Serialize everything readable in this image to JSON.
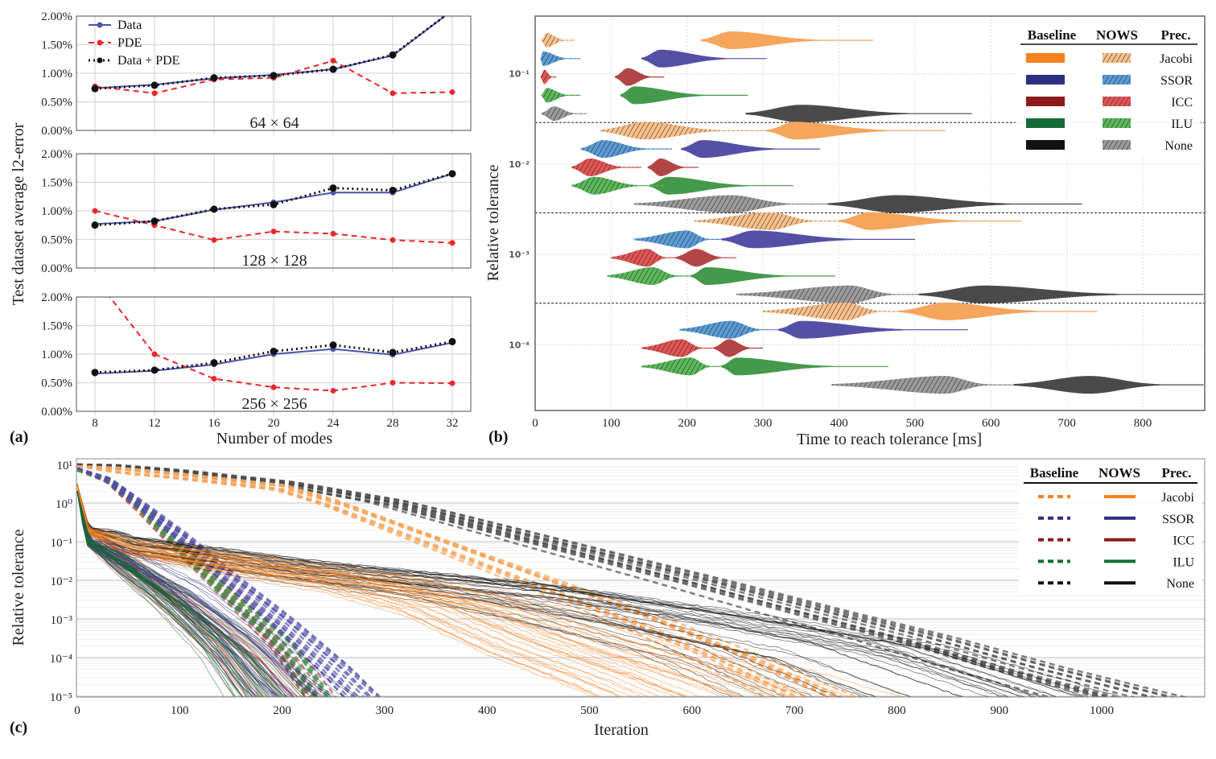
{
  "panel_labels": {
    "a": "(a)",
    "b": "(b)",
    "c": "(c)"
  },
  "colors": {
    "data": "#4a55a8",
    "pde": "#e8282b",
    "data_pde": "#111111",
    "baseline": {
      "Jacobi": "#f6a55c",
      "SSOR": "#5450a6",
      "ICC": "#b24646",
      "ILU": "#45994c",
      "None": "#4a4a4a"
    },
    "baseline_legend": {
      "Jacobi": "#f58220",
      "SSOR": "#2e2e80",
      "ICC": "#8c1a1a",
      "ILU": "#166b36",
      "None": "#111111"
    },
    "nows": {
      "Jacobi": "#f8c08a",
      "SSOR": "#5b9bd5",
      "ICC": "#e25555",
      "ILU": "#5ab85a",
      "None": "#9a9a9a"
    }
  },
  "chart_data": [
    {
      "panel": "a",
      "type": "line",
      "xlabel": "Number of modes",
      "ylabel": "Test dataset average l2-error",
      "x": [
        8,
        12,
        16,
        20,
        24,
        28,
        32
      ],
      "x_tick_labels": [
        "8",
        "12",
        "16",
        "20",
        "24",
        "28",
        "32"
      ],
      "ylim": [
        0,
        2
      ],
      "y_tick_labels": [
        "0.00%",
        "0.50%",
        "1.00%",
        "1.50%",
        "2.00%"
      ],
      "y_unit": "%",
      "grid": true,
      "legend": {
        "placement": "top-left",
        "entries": [
          "Data",
          "PDE",
          "Data + PDE"
        ]
      },
      "subplots": [
        {
          "label": "64 × 64",
          "series": [
            {
              "name": "Data",
              "values": [
                0.74,
                0.8,
                0.91,
                0.97,
                1.07,
                1.31,
                2.1
              ]
            },
            {
              "name": "PDE",
              "values": [
                0.77,
                0.65,
                0.89,
                0.92,
                1.22,
                0.65,
                0.67
              ]
            },
            {
              "name": "Data + PDE",
              "values": [
                0.73,
                0.79,
                0.92,
                0.96,
                1.07,
                1.32,
                2.1
              ]
            }
          ]
        },
        {
          "label": "128 × 128",
          "series": [
            {
              "name": "Data",
              "values": [
                0.77,
                0.82,
                1.02,
                1.15,
                1.32,
                1.32,
                1.65
              ]
            },
            {
              "name": "PDE",
              "values": [
                1.0,
                0.75,
                0.49,
                0.64,
                0.6,
                0.49,
                0.44
              ]
            },
            {
              "name": "Data + PDE",
              "values": [
                0.75,
                0.82,
                1.03,
                1.11,
                1.4,
                1.36,
                1.65
              ]
            }
          ]
        },
        {
          "label": "256 × 256",
          "series": [
            {
              "name": "Data",
              "values": [
                0.66,
                0.71,
                0.82,
                1.0,
                1.09,
                0.99,
                1.2
              ]
            },
            {
              "name": "PDE",
              "values": [
                2.33,
                1.0,
                0.57,
                0.42,
                0.36,
                0.5,
                0.49
              ]
            },
            {
              "name": "Data + PDE",
              "values": [
                0.68,
                0.72,
                0.85,
                1.05,
                1.16,
                1.03,
                1.22
              ]
            }
          ]
        }
      ]
    },
    {
      "panel": "b",
      "type": "violin",
      "xlabel": "Time to reach tolerance [ms]",
      "ylabel": "Relative tolerance",
      "xlim": [
        0,
        880
      ],
      "x_ticks": [
        0,
        100,
        200,
        300,
        400,
        500,
        600,
        700,
        800
      ],
      "tolerance_labels": [
        "10⁻¹",
        "10⁻²",
        "10⁻³",
        "10⁻⁴"
      ],
      "grid": true,
      "legend": {
        "placement": "top-right",
        "headers": [
          "Baseline",
          "NOWS",
          "Prec."
        ],
        "entries": [
          "Jacobi",
          "SSOR",
          "ICC",
          "ILU",
          "None"
        ]
      },
      "groups": [
        {
          "tolerance": "10⁻¹",
          "rows": [
            {
              "prec": "Jacobi",
              "nows": {
                "peak": 15,
                "min": 8,
                "max": 52
              },
              "baseline": {
                "peak": 258,
                "min": 218,
                "max": 445
              }
            },
            {
              "prec": "SSOR",
              "nows": {
                "peak": 10,
                "min": 7,
                "max": 60
              },
              "baseline": {
                "peak": 165,
                "min": 140,
                "max": 305
              }
            },
            {
              "prec": "ICC",
              "nows": {
                "peak": 12,
                "min": 7,
                "max": 28
              },
              "baseline": {
                "peak": 122,
                "min": 105,
                "max": 170
              }
            },
            {
              "prec": "ILU",
              "nows": {
                "peak": 15,
                "min": 8,
                "max": 60
              },
              "baseline": {
                "peak": 130,
                "min": 112,
                "max": 280
              }
            },
            {
              "prec": "None",
              "nows": {
                "peak": 25,
                "min": 8,
                "max": 68
              },
              "baseline": {
                "peak": 350,
                "min": 277,
                "max": 575
              }
            }
          ]
        },
        {
          "tolerance": "10⁻²",
          "rows": [
            {
              "prec": "Jacobi",
              "nows": {
                "peak": 145,
                "min": 85,
                "max": 305
              },
              "baseline": {
                "peak": 342,
                "min": 305,
                "max": 540
              }
            },
            {
              "prec": "SSOR",
              "nows": {
                "peak": 90,
                "min": 60,
                "max": 180
              },
              "baseline": {
                "peak": 220,
                "min": 192,
                "max": 375
              }
            },
            {
              "prec": "ICC",
              "nows": {
                "peak": 72,
                "min": 48,
                "max": 140
              },
              "baseline": {
                "peak": 165,
                "min": 148,
                "max": 215
              }
            },
            {
              "prec": "ILU",
              "nows": {
                "peak": 78,
                "min": 48,
                "max": 170
              },
              "baseline": {
                "peak": 175,
                "min": 150,
                "max": 340
              }
            },
            {
              "prec": "None",
              "nows": {
                "peak": 258,
                "min": 130,
                "max": 385
              },
              "baseline": {
                "peak": 475,
                "min": 385,
                "max": 720
              }
            }
          ]
        },
        {
          "tolerance": "10⁻³",
          "rows": [
            {
              "prec": "Jacobi",
              "nows": {
                "peak": 310,
                "min": 210,
                "max": 400
              },
              "baseline": {
                "peak": 440,
                "min": 400,
                "max": 640
              }
            },
            {
              "prec": "SSOR",
              "nows": {
                "peak": 200,
                "min": 130,
                "max": 245
              },
              "baseline": {
                "peak": 287,
                "min": 245,
                "max": 500
              }
            },
            {
              "prec": "ICC",
              "nows": {
                "peak": 148,
                "min": 100,
                "max": 185
              },
              "baseline": {
                "peak": 212,
                "min": 185,
                "max": 265
              }
            },
            {
              "prec": "ILU",
              "nows": {
                "peak": 155,
                "min": 95,
                "max": 205
              },
              "baseline": {
                "peak": 225,
                "min": 205,
                "max": 395
              }
            },
            {
              "prec": "None",
              "nows": {
                "peak": 415,
                "min": 265,
                "max": 505
              },
              "baseline": {
                "peak": 590,
                "min": 505,
                "max": 880
              }
            }
          ]
        },
        {
          "tolerance": "10⁻⁴",
          "rows": [
            {
              "prec": "Jacobi",
              "nows": {
                "peak": 410,
                "min": 300,
                "max": 480
              },
              "baseline": {
                "peak": 540,
                "min": 480,
                "max": 740
              }
            },
            {
              "prec": "SSOR",
              "nows": {
                "peak": 258,
                "min": 190,
                "max": 320
              },
              "baseline": {
                "peak": 350,
                "min": 320,
                "max": 570
              }
            },
            {
              "prec": "ICC",
              "nows": {
                "peak": 193,
                "min": 140,
                "max": 235
              },
              "baseline": {
                "peak": 255,
                "min": 235,
                "max": 300
              }
            },
            {
              "prec": "ILU",
              "nows": {
                "peak": 205,
                "min": 140,
                "max": 245
              },
              "baseline": {
                "peak": 265,
                "min": 245,
                "max": 465
              }
            },
            {
              "prec": "None",
              "nows": {
                "peak": 540,
                "min": 390,
                "max": 630
              },
              "baseline": {
                "peak": 730,
                "min": 630,
                "max": 880
              }
            }
          ]
        }
      ]
    },
    {
      "panel": "c",
      "type": "line",
      "xlabel": "Iteration",
      "ylabel": "Relative tolerance",
      "xlim": [
        0,
        1100
      ],
      "x_ticks": [
        0,
        100,
        200,
        300,
        400,
        500,
        600,
        700,
        800,
        900,
        1000
      ],
      "ylim": [
        1e-05,
        10
      ],
      "yscale": "log",
      "y_tick_values": [
        10,
        1,
        0.1,
        0.01,
        0.001,
        0.0001,
        1e-05
      ],
      "y_tick_labels": [
        "10¹",
        "10⁰",
        "10⁻¹",
        "10⁻²",
        "10⁻³",
        "10⁻⁴",
        "10⁻⁵"
      ],
      "grid": true,
      "legend": {
        "placement": "top-right",
        "headers": [
          "Baseline",
          "NOWS",
          "Prec."
        ],
        "entries": [
          "Jacobi",
          "SSOR",
          "ICC",
          "ILU",
          "None"
        ]
      },
      "series": [
        {
          "prec": "None",
          "kind": "baseline",
          "points": [
            [
              0,
              10
            ],
            [
              100,
              6
            ],
            [
              200,
              3
            ],
            [
              300,
              1
            ],
            [
              400,
              0.2
            ],
            [
              500,
              0.04
            ],
            [
              600,
              0.008
            ],
            [
              700,
              0.0015
            ],
            [
              800,
              0.0003
            ],
            [
              900,
              5e-05
            ],
            [
              1000,
              1e-05
            ],
            [
              1060,
              4e-06
            ]
          ]
        },
        {
          "prec": "Jacobi",
          "kind": "baseline",
          "points": [
            [
              0,
              9
            ],
            [
              100,
              5
            ],
            [
              200,
              2.5
            ],
            [
              250,
              1
            ],
            [
              350,
              0.1
            ],
            [
              450,
              0.01
            ],
            [
              550,
              0.001
            ],
            [
              640,
              0.0001
            ],
            [
              720,
              1e-05
            ]
          ]
        },
        {
          "prec": "ICC",
          "kind": "baseline",
          "points": [
            [
              0,
              7
            ],
            [
              30,
              4
            ],
            [
              60,
              0.8
            ],
            [
              100,
              0.07
            ],
            [
              150,
              0.004
            ],
            [
              200,
              0.0002
            ],
            [
              235,
              1e-05
            ]
          ]
        },
        {
          "prec": "ILU",
          "kind": "baseline",
          "points": [
            [
              0,
              7
            ],
            [
              30,
              4
            ],
            [
              60,
              0.8
            ],
            [
              100,
              0.06
            ],
            [
              150,
              0.003
            ],
            [
              200,
              0.0002
            ],
            [
              230,
              1e-05
            ]
          ]
        },
        {
          "prec": "SSOR",
          "kind": "baseline",
          "points": [
            [
              0,
              8
            ],
            [
              30,
              4
            ],
            [
              60,
              1
            ],
            [
              100,
              0.15
            ],
            [
              150,
              0.01
            ],
            [
              200,
              0.0008
            ],
            [
              250,
              5e-05
            ],
            [
              275,
              1e-05
            ]
          ]
        },
        {
          "prec": "None",
          "kind": "nows",
          "points": [
            [
              0,
              3
            ],
            [
              10,
              0.2
            ],
            [
              50,
              0.08
            ],
            [
              200,
              0.02
            ],
            [
              400,
              0.005
            ],
            [
              550,
              0.001
            ],
            [
              700,
              0.00015
            ],
            [
              820,
              1e-05
            ]
          ]
        },
        {
          "prec": "Jacobi",
          "kind": "nows",
          "points": [
            [
              0,
              3
            ],
            [
              10,
              0.2
            ],
            [
              50,
              0.07
            ],
            [
              150,
              0.03
            ],
            [
              300,
              0.008
            ],
            [
              400,
              0.002
            ],
            [
              500,
              0.0002
            ],
            [
              600,
              3e-05
            ],
            [
              650,
              1e-05
            ]
          ]
        },
        {
          "prec": "ICC",
          "kind": "nows",
          "points": [
            [
              0,
              2
            ],
            [
              10,
              0.1
            ],
            [
              50,
              0.02
            ],
            [
              100,
              0.002
            ],
            [
              150,
              0.00015
            ],
            [
              185,
              1e-05
            ]
          ]
        },
        {
          "prec": "SSOR",
          "kind": "nows",
          "points": [
            [
              0,
              2
            ],
            [
              10,
              0.1
            ],
            [
              50,
              0.03
            ],
            [
              100,
              0.005
            ],
            [
              150,
              0.0004
            ],
            [
              200,
              2e-05
            ],
            [
              215,
              1e-05
            ]
          ]
        },
        {
          "prec": "ILU",
          "kind": "nows",
          "points": [
            [
              0,
              2
            ],
            [
              10,
              0.1
            ],
            [
              50,
              0.02
            ],
            [
              100,
              0.002
            ],
            [
              150,
              0.00015
            ],
            [
              185,
              1e-05
            ]
          ]
        }
      ]
    }
  ]
}
